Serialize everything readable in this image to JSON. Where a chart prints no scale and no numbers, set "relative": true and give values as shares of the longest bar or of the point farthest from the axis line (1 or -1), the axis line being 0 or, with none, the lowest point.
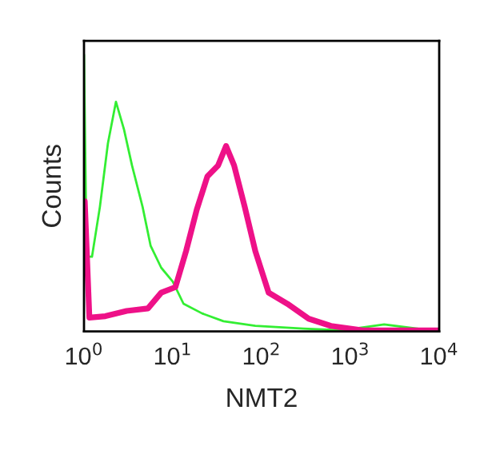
{
  "chart_data": {
    "type": "line",
    "relative": true,
    "log": "x",
    "xlabel": "NMT2",
    "ylabel": "Counts",
    "xlim": [
      1,
      10000
    ],
    "xticks": [
      {
        "value": 1,
        "label": "10$^{0}$"
      },
      {
        "value": 10,
        "label": "10$^{1}$"
      },
      {
        "value": 100,
        "label": "10$^{2}$"
      },
      {
        "value": 1000,
        "label": "10$^{3}$"
      },
      {
        "value": 10000,
        "label": "10$^{4}$"
      }
    ],
    "grid": false,
    "legend": false,
    "series": [
      {
        "color": "#33ee33",
        "x": [
          1,
          1.07,
          1.23,
          1.51,
          1.86,
          2.29,
          2.82,
          3.47,
          4.57,
          5.62,
          7.41,
          10,
          13.2,
          21.4,
          37.2,
          85,
          295,
          794,
          2400,
          10000
        ],
        "values": [
          1.0,
          0.27,
          0.27,
          0.45,
          0.68,
          0.83,
          0.73,
          0.6,
          0.45,
          0.31,
          0.23,
          0.18,
          0.1,
          0.065,
          0.037,
          0.02,
          0.01,
          0.004,
          0.025,
          0
        ]
      },
      {
        "color": "#ee1188",
        "x": [
          1.02,
          1.15,
          1.74,
          3.02,
          5.25,
          7.41,
          10.7,
          14.1,
          18.6,
          24.5,
          32.4,
          39.8,
          49,
          64.6,
          85,
          120,
          195,
          339,
          603,
          1380,
          10000
        ],
        "values": [
          0.47,
          0.05,
          0.055,
          0.074,
          0.083,
          0.14,
          0.16,
          0.29,
          0.44,
          0.56,
          0.6,
          0.67,
          0.6,
          0.45,
          0.29,
          0.14,
          0.1,
          0.046,
          0.02,
          0.004,
          0.004
        ]
      }
    ]
  }
}
